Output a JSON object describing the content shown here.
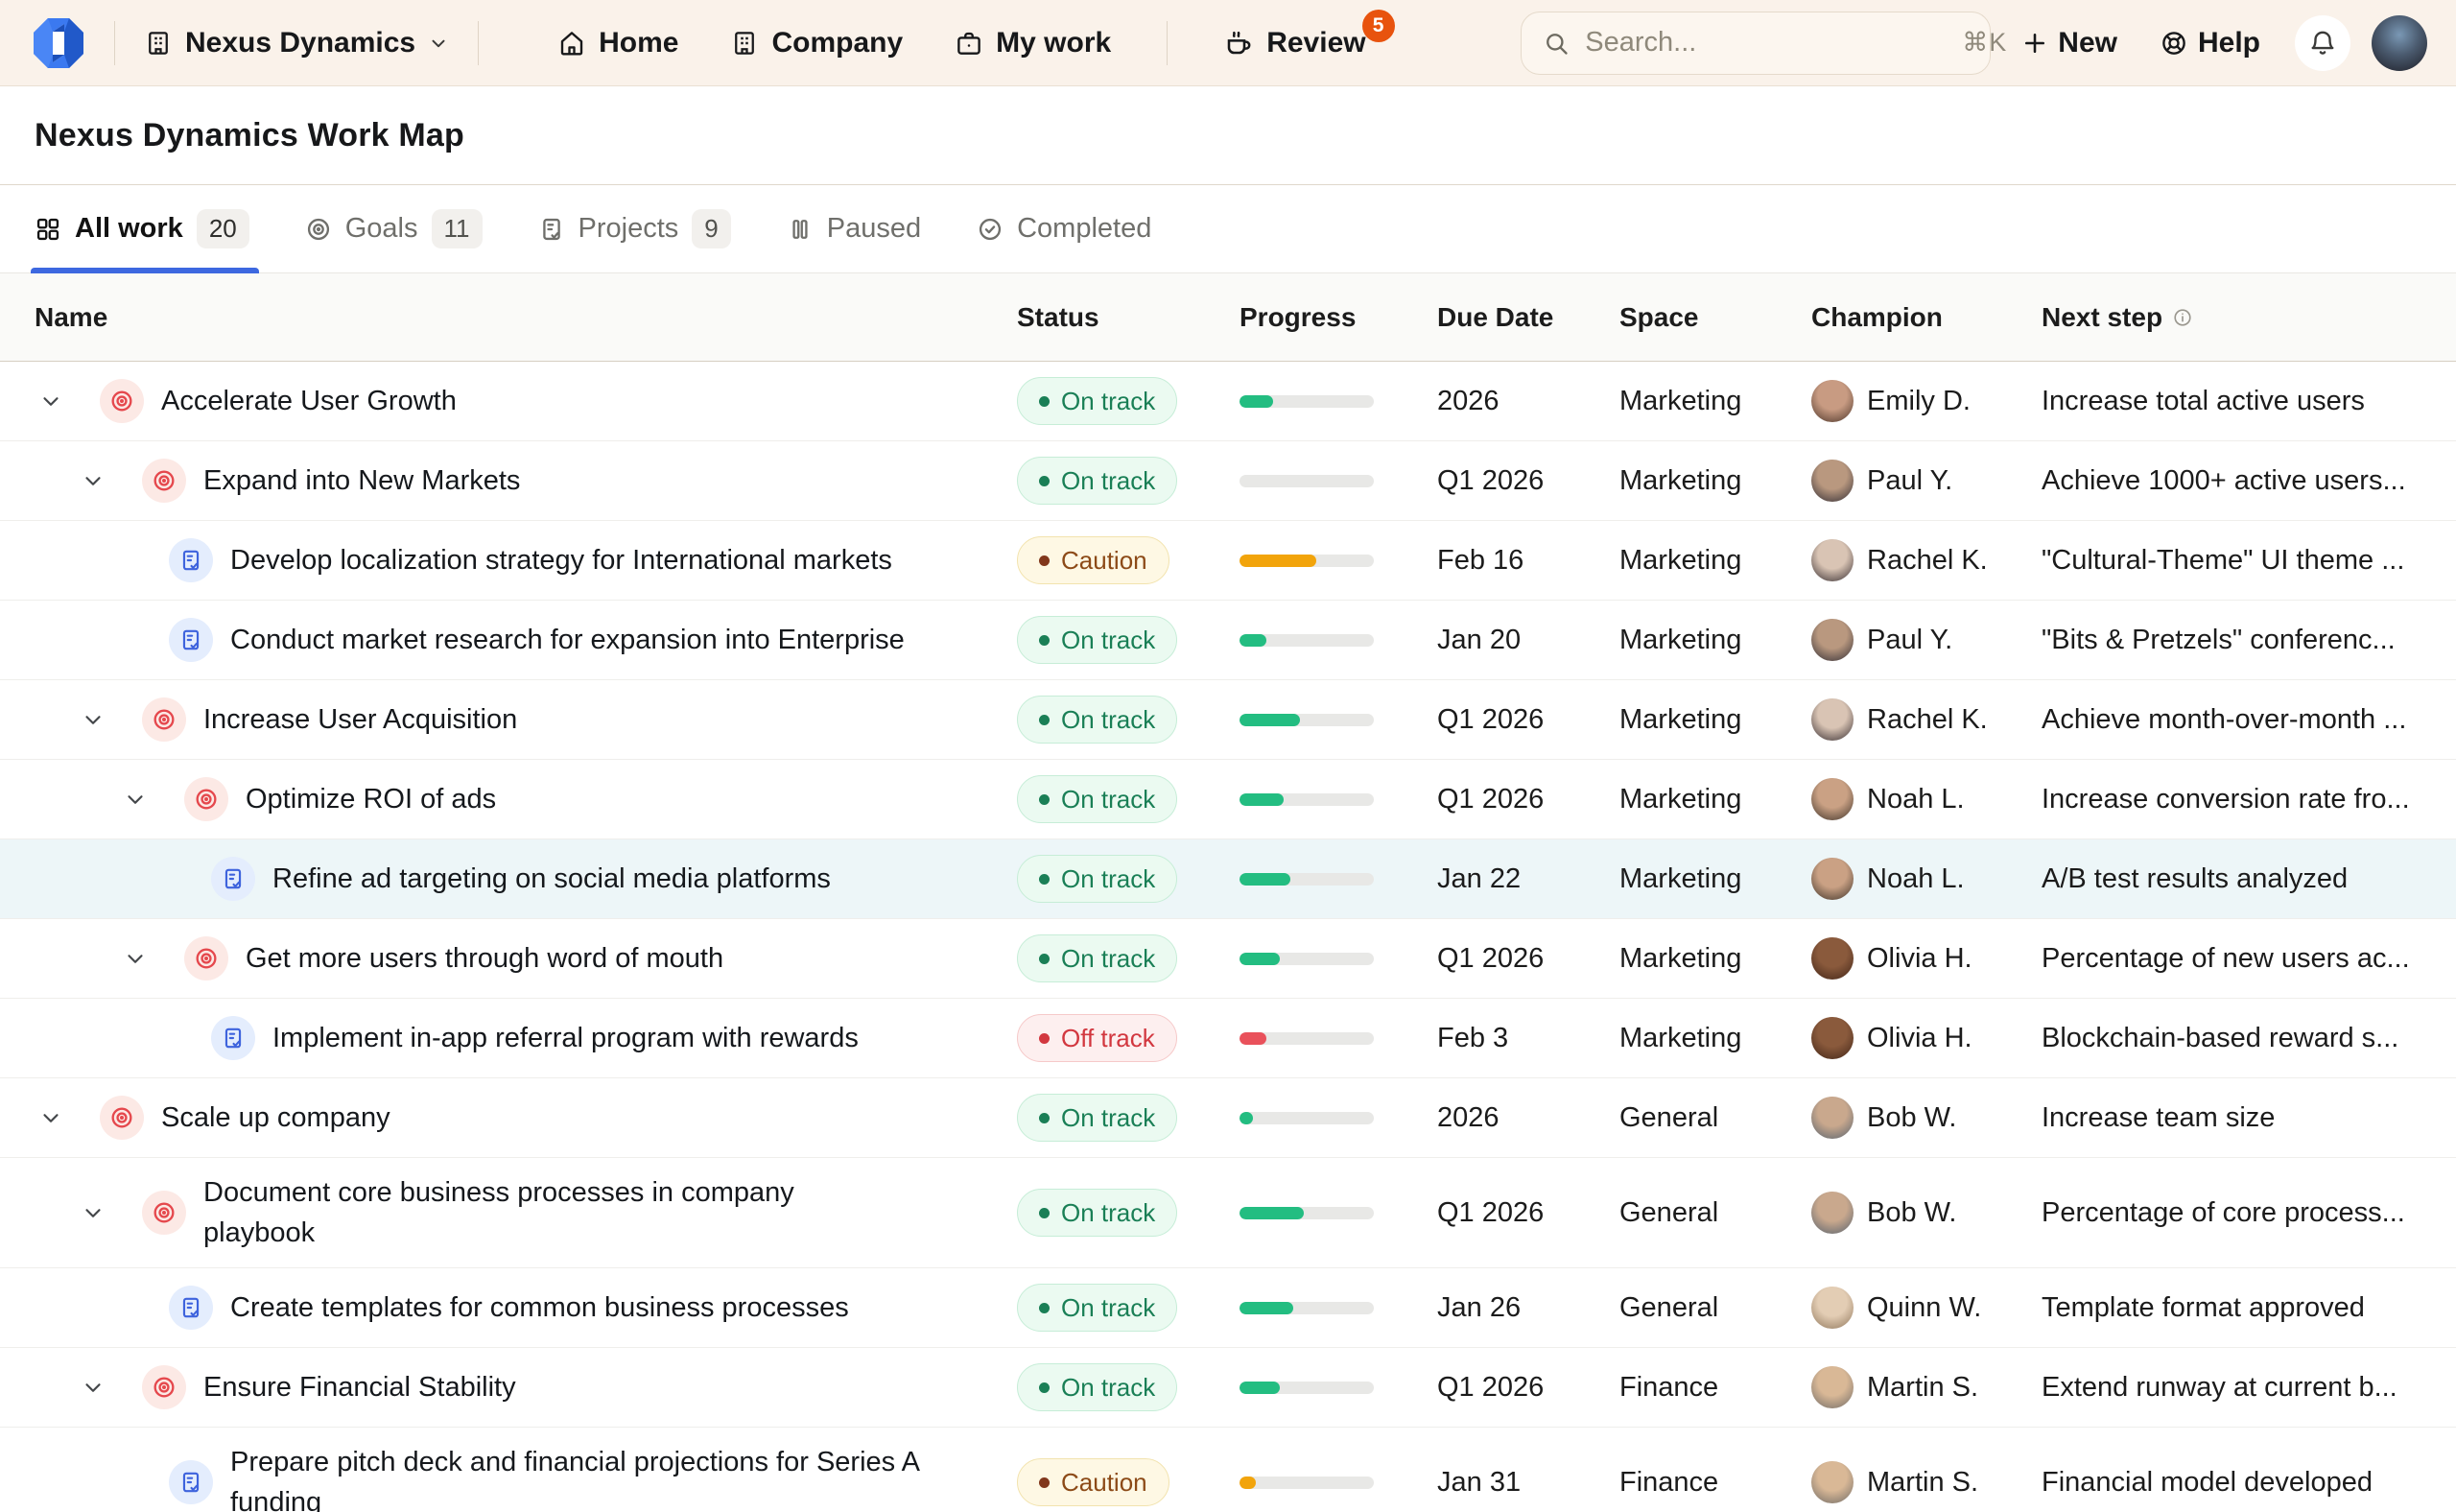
{
  "colors": {
    "topbar_bg": "#FAF2EA",
    "accent_blue": "#3D68E0",
    "review_badge": "#E8530E",
    "on_track_text": "#1A7F56",
    "caution_text": "#8C4A17",
    "off_track_text": "#D2373F",
    "progress_green": "#23BD81",
    "progress_amber": "#F2A40B",
    "progress_red": "#E9515B",
    "selected_row_bg": "#EDF6F8"
  },
  "topbar": {
    "workspace": {
      "label": "Nexus Dynamics"
    },
    "nav": [
      {
        "label": "Home"
      },
      {
        "label": "Company"
      },
      {
        "label": "My work"
      },
      {
        "label": "Review",
        "badge": "5"
      }
    ],
    "search": {
      "placeholder": "Search...",
      "shortcut": "⌘K"
    },
    "new_label": "New",
    "help_label": "Help"
  },
  "page": {
    "title": "Nexus Dynamics Work Map"
  },
  "tabs": [
    {
      "label": "All work",
      "count": "20",
      "active": true
    },
    {
      "label": "Goals",
      "count": "11"
    },
    {
      "label": "Projects",
      "count": "9"
    },
    {
      "label": "Paused"
    },
    {
      "label": "Completed"
    }
  ],
  "table": {
    "columns": {
      "name": "Name",
      "status": "Status",
      "progress": "Progress",
      "due": "Due Date",
      "space": "Space",
      "champion": "Champion",
      "next": "Next step"
    },
    "rows": [
      {
        "name": "Accelerate User Growth",
        "type": "goal",
        "level": 0,
        "expandable": true,
        "status": "On track",
        "progress": 25,
        "due": "2026",
        "space": "Marketing",
        "champion": "Emily D.",
        "avatar": [
          "#c89b82",
          "#4a3328"
        ],
        "next_step": "Increase total active users"
      },
      {
        "name": "Expand into New Markets",
        "type": "goal",
        "level": 1,
        "expandable": true,
        "status": "On track",
        "progress": 0,
        "due": "Q1 2026",
        "space": "Marketing",
        "champion": "Paul Y.",
        "avatar": [
          "#b9987f",
          "#2f2b33"
        ],
        "next_step": "Achieve 1000+ active users..."
      },
      {
        "name": "Develop localization strategy for International markets",
        "type": "project",
        "level": 2,
        "expandable": false,
        "status": "Caution",
        "progress": 57,
        "due": "Feb 16",
        "space": "Marketing",
        "champion": "Rachel K.",
        "avatar": [
          "#d9c4b4",
          "#332a2e"
        ],
        "next_step": "\"Cultural-Theme\" UI theme ..."
      },
      {
        "name": "Conduct market research for expansion into Enterprise",
        "type": "project",
        "level": 2,
        "expandable": false,
        "status": "On track",
        "progress": 20,
        "due": "Jan 20",
        "space": "Marketing",
        "champion": "Paul Y.",
        "avatar": [
          "#b9987f",
          "#2f2b33"
        ],
        "next_step": "\"Bits & Pretzels\" conferenc..."
      },
      {
        "name": "Increase User Acquisition",
        "type": "goal",
        "level": 1,
        "expandable": true,
        "status": "On track",
        "progress": 45,
        "due": "Q1 2026",
        "space": "Marketing",
        "champion": "Rachel K.",
        "avatar": [
          "#d9c4b4",
          "#332a2e"
        ],
        "next_step": "Achieve month-over-month ..."
      },
      {
        "name": "Optimize ROI of ads",
        "type": "goal",
        "level": 2,
        "expandable": true,
        "status": "On track",
        "progress": 33,
        "due": "Q1 2026",
        "space": "Marketing",
        "champion": "Noah L.",
        "avatar": [
          "#caa184",
          "#3c3128"
        ],
        "next_step": "Increase conversion rate fro..."
      },
      {
        "name": "Refine ad targeting on social media platforms",
        "type": "project",
        "level": 3,
        "expandable": false,
        "status": "On track",
        "progress": 38,
        "due": "Jan 22",
        "space": "Marketing",
        "champion": "Noah L.",
        "avatar": [
          "#caa184",
          "#3c3128"
        ],
        "next_step": "A/B test results analyzed",
        "selected": true
      },
      {
        "name": "Get more users through word of mouth",
        "type": "goal",
        "level": 2,
        "expandable": true,
        "status": "On track",
        "progress": 30,
        "due": "Q1 2026",
        "space": "Marketing",
        "champion": "Olivia H.",
        "avatar": [
          "#8a5a3c",
          "#402417"
        ],
        "next_step": "Percentage of new users ac..."
      },
      {
        "name": "Implement in-app referral program with rewards",
        "type": "project",
        "level": 3,
        "expandable": false,
        "status": "Off track",
        "progress": 20,
        "due": "Feb 3",
        "space": "Marketing",
        "champion": "Olivia H.",
        "avatar": [
          "#8a5a3c",
          "#402417"
        ],
        "next_step": "Blockchain-based reward s..."
      },
      {
        "name": "Scale up company",
        "type": "goal",
        "level": 0,
        "expandable": true,
        "status": "On track",
        "progress": 10,
        "due": "2026",
        "space": "General",
        "champion": "Bob W.",
        "avatar": [
          "#c9a88d",
          "#55616e"
        ],
        "next_step": "Increase team size"
      },
      {
        "name": "Document core business processes in company playbook",
        "type": "goal",
        "level": 1,
        "expandable": true,
        "status": "On track",
        "progress": 48,
        "due": "Q1 2026",
        "space": "General",
        "champion": "Bob W.",
        "avatar": [
          "#c9a88d",
          "#55616e"
        ],
        "next_step": "Percentage of core process...",
        "tall": true,
        "wrap_width": 620
      },
      {
        "name": "Create templates for common business processes",
        "type": "project",
        "level": 2,
        "expandable": false,
        "status": "On track",
        "progress": 40,
        "due": "Jan 26",
        "space": "General",
        "champion": "Quinn W.",
        "avatar": [
          "#e3cdb4",
          "#8e755a"
        ],
        "next_step": "Template format approved"
      },
      {
        "name": "Ensure Financial Stability",
        "type": "goal",
        "level": 1,
        "expandable": true,
        "status": "On track",
        "progress": 30,
        "due": "Q1 2026",
        "space": "Finance",
        "champion": "Martin S.",
        "avatar": [
          "#d9b896",
          "#6e6a66"
        ],
        "next_step": "Extend runway at current b..."
      },
      {
        "name": "Prepare pitch deck and financial projections for Series A funding",
        "type": "project",
        "level": 2,
        "expandable": false,
        "status": "Caution",
        "progress": 12,
        "due": "Jan 31",
        "space": "Finance",
        "champion": "Martin S.",
        "avatar": [
          "#d9b896",
          "#6e6a66"
        ],
        "next_step": "Financial model developed",
        "tall": true,
        "wrap_width": 760
      }
    ]
  }
}
